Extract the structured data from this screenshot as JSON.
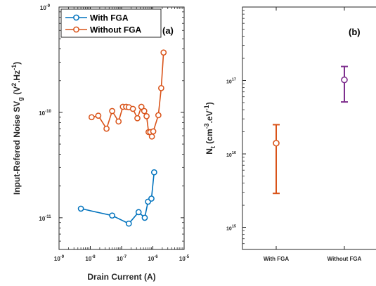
{
  "chart_data": [
    {
      "type": "line",
      "panel_label": "(a)",
      "xlabel": "Drain Current (A)",
      "ylabel_main": "Input-Refered Noise SV",
      "ylabel_sub": "g",
      "ylabel_unit_open": " (V",
      "ylabel_unit_sup1": "2",
      "ylabel_unit_mid": ".Hz",
      "ylabel_unit_sup2": "-1",
      "ylabel_unit_close": ")",
      "x_scale": "log",
      "y_scale": "log",
      "xlim": [
        1e-09,
        1e-05
      ],
      "ylim": [
        5e-12,
        1e-09
      ],
      "x_ticks": [
        {
          "value": 1e-09,
          "base": "10",
          "exp": "-9"
        },
        {
          "value": 1e-08,
          "base": "10",
          "exp": "-8"
        },
        {
          "value": 1e-07,
          "base": "10",
          "exp": "-7"
        },
        {
          "value": 1e-06,
          "base": "10",
          "exp": "-6"
        },
        {
          "value": 1e-05,
          "base": "10",
          "exp": "-5"
        }
      ],
      "y_ticks": [
        {
          "value": 1e-11,
          "base": "10",
          "exp": "-11"
        },
        {
          "value": 1e-10,
          "base": "10",
          "exp": "-10"
        },
        {
          "value": 1e-09,
          "base": "10",
          "exp": "-9"
        }
      ],
      "legend_position": "top-left",
      "series": [
        {
          "name": "With FGA",
          "color": "#0072BD",
          "x": [
            5e-09,
            5e-08,
            1.7e-07,
            3.5e-07,
            5.5e-07,
            7e-07,
            9e-07,
            1.1e-06
          ],
          "y": [
            1.22e-11,
            1.05e-11,
            8.8e-12,
            1.13e-11,
            1e-11,
            1.42e-11,
            1.52e-11,
            2.7e-11
          ]
        },
        {
          "name": "Without FGA",
          "color": "#D95319",
          "x": [
            1.1e-08,
            1.8e-08,
            3.3e-08,
            5e-08,
            8e-08,
            1.1e-07,
            1.4e-07,
            1.7e-07,
            2.3e-07,
            3.2e-07,
            4.3e-07,
            5.3e-07,
            6.3e-07,
            7.3e-07,
            8.3e-07,
            9.3e-07,
            1.03e-06,
            1.5e-06,
            1.85e-06,
            2.2e-06
          ],
          "y": [
            9e-11,
            9.3e-11,
            7e-11,
            1.03e-10,
            8.2e-11,
            1.13e-10,
            1.13e-10,
            1.12e-10,
            1.08e-10,
            8.8e-11,
            1.13e-10,
            1.03e-10,
            9.2e-11,
            6.5e-11,
            6.5e-11,
            5.9e-11,
            6.6e-11,
            9.4e-11,
            1.7e-10,
            3.7e-10
          ]
        }
      ]
    },
    {
      "type": "scatter",
      "panel_label": "(b)",
      "ylabel_main": "N",
      "ylabel_sub": "t",
      "ylabel_unit_open": " (cm",
      "ylabel_unit_sup1": "-3",
      "ylabel_unit_mid": ".eV",
      "ylabel_unit_sup2": "-1",
      "ylabel_unit_close": ")",
      "y_scale": "log",
      "ylim": [
        500000000000000.0,
        1e+18
      ],
      "categories": [
        "With FGA",
        "Without FGA"
      ],
      "y_ticks": [
        {
          "value": 1000000000000000.0,
          "base": "10",
          "exp": "15"
        },
        {
          "value": 1e+16,
          "base": "10",
          "exp": "16"
        },
        {
          "value": 1e+17,
          "base": "10",
          "exp": "17"
        }
      ],
      "series": [
        {
          "category": "With FGA",
          "color": "#D95319",
          "value": 1.4e+16,
          "low": 2900000000000000.0,
          "high": 2.5e+16
        },
        {
          "category": "Without FGA",
          "color": "#7E2F8E",
          "value": 1.02e+17,
          "low": 5.1e+16,
          "high": 1.55e+17
        }
      ]
    }
  ]
}
